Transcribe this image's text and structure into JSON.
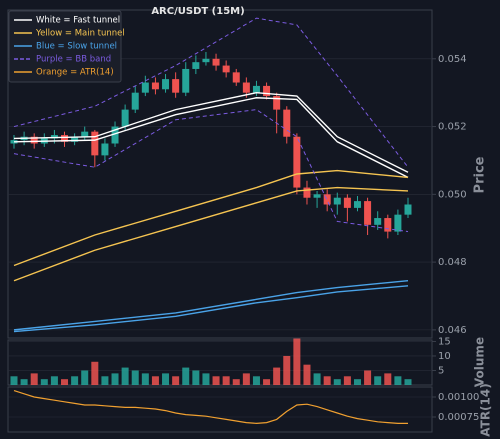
{
  "chart_data": {
    "type": "candlestick",
    "title": "ARC/USDT (15M)",
    "open": [
      0.0515,
      0.0516,
      0.0517,
      0.0515,
      0.05165,
      0.05175,
      0.05155,
      0.0517,
      0.05185,
      0.05115,
      0.0515,
      0.052,
      0.0525,
      0.053,
      0.0533,
      0.0531,
      0.0534,
      0.053,
      0.0537,
      0.0539,
      0.054,
      0.0538,
      0.0536,
      0.0533,
      0.053,
      0.0532,
      0.0529,
      0.0525,
      0.0517,
      0.0502,
      0.0499,
      0.05,
      0.0497,
      0.0499,
      0.0496,
      0.0498,
      0.0491,
      0.0493,
      0.0489,
      0.0494
    ],
    "high": [
      0.05175,
      0.05185,
      0.0518,
      0.0518,
      0.0519,
      0.05185,
      0.0518,
      0.052,
      0.0519,
      0.05165,
      0.05215,
      0.05265,
      0.0532,
      0.0535,
      0.05345,
      0.05355,
      0.0536,
      0.0539,
      0.0541,
      0.0542,
      0.05415,
      0.05395,
      0.0537,
      0.05345,
      0.05335,
      0.0533,
      0.053,
      0.0526,
      0.0518,
      0.0504,
      0.0501,
      0.05015,
      0.05005,
      0.05,
      0.04995,
      0.0499,
      0.0495,
      0.0494,
      0.04955,
      0.0499
    ],
    "low": [
      0.05135,
      0.05145,
      0.05135,
      0.0514,
      0.0515,
      0.0514,
      0.05145,
      0.0516,
      0.0508,
      0.051,
      0.0514,
      0.0519,
      0.0524,
      0.0529,
      0.05295,
      0.053,
      0.05285,
      0.0529,
      0.05355,
      0.0538,
      0.05365,
      0.05345,
      0.0532,
      0.05285,
      0.0529,
      0.0528,
      0.0518,
      0.0515,
      0.05,
      0.0497,
      0.0496,
      0.0495,
      0.0494,
      0.0492,
      0.0495,
      0.0488,
      0.04895,
      0.0487,
      0.0488,
      0.0493
    ],
    "close": [
      0.0516,
      0.0517,
      0.0515,
      0.05165,
      0.05175,
      0.05155,
      0.0517,
      0.05185,
      0.05115,
      0.0515,
      0.052,
      0.0525,
      0.053,
      0.0533,
      0.0531,
      0.0534,
      0.053,
      0.0537,
      0.0539,
      0.054,
      0.0538,
      0.0536,
      0.0533,
      0.053,
      0.0532,
      0.0529,
      0.0525,
      0.0517,
      0.0502,
      0.0499,
      0.05,
      0.0497,
      0.0499,
      0.0496,
      0.0498,
      0.0491,
      0.0493,
      0.0489,
      0.0494,
      0.0497
    ],
    "up_color": "#26a69a",
    "down_color": "#ef5350",
    "ylabel": "Price",
    "ylim": [
      0.04576,
      0.05544
    ],
    "yticks": [
      0.046,
      0.048,
      {
        "value": 0.05,
        "label": "0.050"
      },
      0.052,
      0.054
    ],
    "lines": [
      {
        "name": "White = Fast tunnel",
        "color": "#ffffff",
        "x": [
          0,
          8,
          16,
          24,
          28,
          32,
          39
        ],
        "upper": [
          0.05165,
          0.0517,
          0.0525,
          0.053,
          0.0529,
          0.0517,
          0.05065
        ],
        "lower": [
          0.05155,
          0.0516,
          0.05235,
          0.05285,
          0.0528,
          0.05155,
          0.0505
        ]
      },
      {
        "name": "Yellow = Main tunnel",
        "color": "#f5c451",
        "x": [
          0,
          8,
          16,
          24,
          28,
          32,
          39
        ],
        "upper": [
          0.0479,
          0.0488,
          0.0495,
          0.0502,
          0.0506,
          0.0507,
          0.0505
        ],
        "lower": [
          0.04745,
          0.04835,
          0.04905,
          0.04975,
          0.0501,
          0.0502,
          0.0501
        ]
      },
      {
        "name": "Blue = Slow tunnel",
        "color": "#4aa3e8",
        "x": [
          0,
          8,
          16,
          24,
          28,
          32,
          39
        ],
        "upper": [
          0.046,
          0.04625,
          0.0465,
          0.0469,
          0.0471,
          0.04725,
          0.04745
        ],
        "lower": [
          0.04595,
          0.04615,
          0.0464,
          0.0468,
          0.04695,
          0.04712,
          0.0473
        ]
      },
      {
        "name": "Purple = BB band",
        "color": "#7b5be0",
        "dashed": true,
        "x": [
          0,
          8,
          16,
          24,
          28,
          32,
          39
        ],
        "upper": [
          0.052,
          0.0526,
          0.0538,
          0.0552,
          0.055,
          0.0535,
          0.0508
        ],
        "lower": [
          0.0512,
          0.0508,
          0.0522,
          0.0525,
          0.0517,
          0.0492,
          0.0489
        ]
      }
    ],
    "volume": {
      "ylabel": "Volume",
      "ylim": [
        0,
        15.5
      ],
      "yticks": [
        5,
        10,
        15
      ],
      "values": [
        3,
        2,
        4,
        2,
        3,
        2,
        3,
        5,
        8,
        3,
        4,
        6,
        5,
        4,
        3,
        4,
        3,
        6,
        5,
        4,
        3,
        3,
        2,
        4,
        3,
        2,
        6,
        10,
        16,
        7,
        4,
        3,
        2,
        3,
        2,
        5,
        3,
        4,
        3,
        2
      ]
    },
    "atr": {
      "name": "Orange = ATR(14)",
      "ylabel": "ATR(14)",
      "color": "#f0a030",
      "ylim": [
        0.0005625,
        0.001125
      ],
      "yticks": [
        {
          "value": 0.00075,
          "label": "0.00075"
        },
        {
          "value": 0.001,
          "label": "0.00100"
        }
      ],
      "values": [
        0.00108,
        0.00104,
        0.001,
        0.00098,
        0.00096,
        0.00094,
        0.00092,
        0.0009,
        0.0009,
        0.00089,
        0.00088,
        0.00087,
        0.00087,
        0.00086,
        0.00085,
        0.00083,
        0.0008,
        0.00078,
        0.00077,
        0.00076,
        0.00074,
        0.00072,
        0.0007,
        0.00068,
        0.00067,
        0.00068,
        0.00072,
        0.00082,
        0.0009,
        0.00091,
        0.00088,
        0.00084,
        0.0008,
        0.00076,
        0.00073,
        0.00071,
        0.00069,
        0.00068,
        0.00067,
        0.00067
      ]
    }
  }
}
